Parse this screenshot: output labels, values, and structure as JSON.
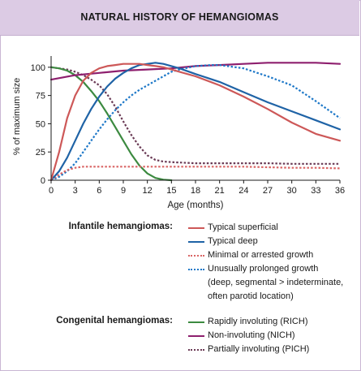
{
  "header": {
    "title": "NATURAL HISTORY OF HEMANGIOMAS"
  },
  "chart_data": {
    "type": "line",
    "title": "",
    "xlabel": "Age (months)",
    "ylabel": "% of maximum size",
    "xlim": [
      0,
      36
    ],
    "ylim": [
      0,
      100
    ],
    "xticks": [
      0,
      3,
      6,
      9,
      12,
      15,
      18,
      21,
      24,
      27,
      30,
      33,
      36
    ],
    "yticks": [
      0,
      25,
      50,
      75,
      100
    ],
    "grid": false,
    "legend_position": "bottom",
    "legend_groups": [
      {
        "label": "Infantile hemangiomas:",
        "series_names": [
          "Typical superficial",
          "Typical deep",
          "Minimal or arrested growth",
          "Unusually prolonged growth"
        ],
        "note": [
          "(deep, segmental > indeterminate,",
          "often parotid location)"
        ]
      },
      {
        "label": "Congenital hemangiomas:",
        "series_names": [
          "Rapidly involuting (RICH)",
          "Non-involuting (NICH)",
          "Partially involuting (PICH)"
        ]
      }
    ],
    "series": [
      {
        "name": "Typical superficial",
        "color": "#cd5858",
        "style": "solid",
        "points": [
          [
            0,
            0
          ],
          [
            1,
            25
          ],
          [
            2,
            55
          ],
          [
            3,
            75
          ],
          [
            4,
            88
          ],
          [
            5,
            95
          ],
          [
            6,
            99
          ],
          [
            7,
            101
          ],
          [
            8,
            102
          ],
          [
            9,
            103
          ],
          [
            10,
            103
          ],
          [
            11,
            103
          ],
          [
            12,
            102
          ],
          [
            13,
            101
          ],
          [
            14,
            100
          ],
          [
            15,
            98
          ],
          [
            16,
            96
          ],
          [
            18,
            92
          ],
          [
            21,
            84
          ],
          [
            24,
            74
          ],
          [
            27,
            63
          ],
          [
            30,
            51
          ],
          [
            33,
            41
          ],
          [
            36,
            35
          ]
        ]
      },
      {
        "name": "Typical deep",
        "color": "#1f63a6",
        "style": "solid",
        "points": [
          [
            0,
            0
          ],
          [
            1,
            8
          ],
          [
            2,
            20
          ],
          [
            3,
            35
          ],
          [
            4,
            50
          ],
          [
            5,
            63
          ],
          [
            6,
            74
          ],
          [
            7,
            83
          ],
          [
            8,
            90
          ],
          [
            9,
            95
          ],
          [
            10,
            99
          ],
          [
            11,
            102
          ],
          [
            12,
            103
          ],
          [
            13,
            104
          ],
          [
            14,
            103
          ],
          [
            15,
            101
          ],
          [
            16,
            99
          ],
          [
            18,
            94
          ],
          [
            21,
            87
          ],
          [
            24,
            78
          ],
          [
            27,
            69
          ],
          [
            30,
            61
          ],
          [
            33,
            53
          ],
          [
            36,
            45
          ]
        ]
      },
      {
        "name": "Minimal or arrested growth",
        "color": "#d96464",
        "style": "dotted",
        "points": [
          [
            0,
            0
          ],
          [
            1,
            5
          ],
          [
            2,
            9
          ],
          [
            3,
            11
          ],
          [
            4,
            12
          ],
          [
            5,
            12
          ],
          [
            6,
            12
          ],
          [
            9,
            12
          ],
          [
            12,
            12
          ],
          [
            15,
            12
          ],
          [
            18,
            12
          ],
          [
            21,
            12
          ],
          [
            24,
            12
          ],
          [
            27,
            11.5
          ],
          [
            30,
            11
          ],
          [
            33,
            11
          ],
          [
            36,
            10.5
          ]
        ]
      },
      {
        "name": "Unusually prolonged growth",
        "color": "#1e78c8",
        "style": "dotted",
        "points": [
          [
            0,
            0
          ],
          [
            1,
            3
          ],
          [
            2,
            8
          ],
          [
            3,
            15
          ],
          [
            4,
            25
          ],
          [
            5,
            35
          ],
          [
            6,
            45
          ],
          [
            7,
            54
          ],
          [
            8,
            62
          ],
          [
            9,
            69
          ],
          [
            10,
            75
          ],
          [
            11,
            80
          ],
          [
            12,
            84
          ],
          [
            13,
            88
          ],
          [
            14,
            92
          ],
          [
            15,
            96
          ],
          [
            16,
            98
          ],
          [
            18,
            101
          ],
          [
            20,
            102
          ],
          [
            21,
            102
          ],
          [
            24,
            99
          ],
          [
            27,
            92
          ],
          [
            30,
            84
          ],
          [
            33,
            70
          ],
          [
            36,
            55
          ]
        ]
      },
      {
        "name": "Rapidly involuting (RICH)",
        "color": "#3c8a40",
        "style": "solid",
        "points": [
          [
            0,
            100
          ],
          [
            1,
            99
          ],
          [
            2,
            97
          ],
          [
            3,
            93
          ],
          [
            4,
            87
          ],
          [
            5,
            79
          ],
          [
            6,
            70
          ],
          [
            7,
            59
          ],
          [
            8,
            47
          ],
          [
            9,
            35
          ],
          [
            10,
            23
          ],
          [
            11,
            13
          ],
          [
            12,
            6
          ],
          [
            13,
            2
          ],
          [
            14,
            0.5
          ],
          [
            15,
            0
          ]
        ]
      },
      {
        "name": "Non-involuting (NICH)",
        "color": "#8e1f6e",
        "style": "solid",
        "points": [
          [
            0,
            89
          ],
          [
            3,
            93
          ],
          [
            6,
            95
          ],
          [
            9,
            97
          ],
          [
            12,
            98
          ],
          [
            15,
            99
          ],
          [
            18,
            101
          ],
          [
            21,
            102
          ],
          [
            24,
            103
          ],
          [
            27,
            104
          ],
          [
            30,
            104
          ],
          [
            33,
            104
          ],
          [
            36,
            103
          ]
        ]
      },
      {
        "name": "Partially involuting (PICH)",
        "color": "#6a3a55",
        "style": "dotted",
        "points": [
          [
            0,
            100
          ],
          [
            1,
            99
          ],
          [
            2,
            98
          ],
          [
            3,
            96
          ],
          [
            4,
            93
          ],
          [
            5,
            89
          ],
          [
            6,
            84
          ],
          [
            7,
            76
          ],
          [
            8,
            65
          ],
          [
            9,
            52
          ],
          [
            10,
            40
          ],
          [
            11,
            30
          ],
          [
            12,
            22
          ],
          [
            13,
            18
          ],
          [
            14,
            16.5
          ],
          [
            15,
            16
          ],
          [
            18,
            15
          ],
          [
            21,
            15
          ],
          [
            24,
            15
          ],
          [
            27,
            15
          ],
          [
            30,
            14.5
          ],
          [
            33,
            14.5
          ],
          [
            36,
            14.5
          ]
        ]
      }
    ]
  }
}
